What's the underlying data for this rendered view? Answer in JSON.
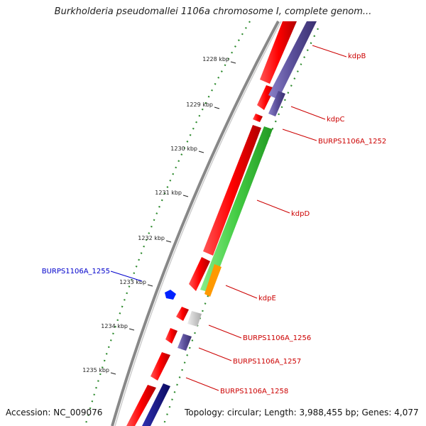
{
  "title": "Burkholderia pseudomallei 1106a chromosome I, complete genom...",
  "footer": {
    "accession": "Accession: NC_009076",
    "summary": "Topology: circular; Length: 3,988,455 bp; Genes: 4,077"
  },
  "colors": {
    "backbone": "#888888",
    "gc_dots": "#2e8b2e",
    "forward_gene": "#ff0000",
    "reverse_gene": "#ff0000",
    "label_forward": "#cc0000",
    "label_reverse": "#0000cc",
    "cog_purple": "#5a4f9a",
    "cog_green": "#44cc44",
    "cog_orange": "#ff9900",
    "cog_gray": "#c8c8c8",
    "cog_navy": "#1a1a80",
    "cog_blue": "#0022ff"
  },
  "ticks": [
    {
      "label": "1228 kbp"
    },
    {
      "label": "1229 kbp"
    },
    {
      "label": "1230 kbp"
    },
    {
      "label": "1231 kbp"
    },
    {
      "label": "1232 kbp"
    },
    {
      "label": "1233 kbp"
    },
    {
      "label": "1234 kbp"
    },
    {
      "label": "1235 kbp"
    }
  ],
  "genes": [
    {
      "label": "kdpB",
      "strand": "forward",
      "cog_color": "purple"
    },
    {
      "label": "kdpC",
      "strand": "forward",
      "cog_color": "purple"
    },
    {
      "label": "BURPS1106A_1252",
      "strand": "forward",
      "cog_color": "none"
    },
    {
      "label": "kdpD",
      "strand": "forward",
      "cog_color": "green"
    },
    {
      "label": "kdpE",
      "strand": "forward",
      "cog_color": "orange"
    },
    {
      "label": "BURPS1106A_1255",
      "strand": "reverse",
      "cog_color": "blue"
    },
    {
      "label": "BURPS1106A_1256",
      "strand": "forward",
      "cog_color": "gray"
    },
    {
      "label": "BURPS1106A_1257",
      "strand": "forward",
      "cog_color": "purple"
    },
    {
      "label": "BURPS1106A_1258",
      "strand": "forward",
      "cog_color": "none"
    }
  ]
}
